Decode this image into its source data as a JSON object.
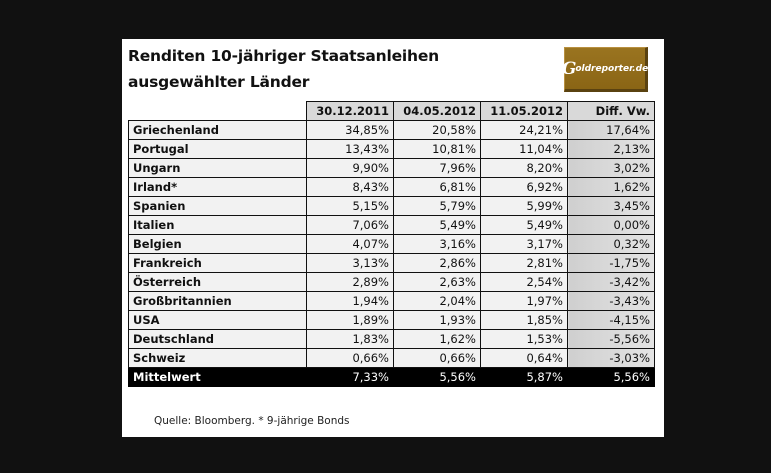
{
  "title_line1": "Renditen 10-jähriger Staatsanleihen",
  "title_line2": "ausgewählter Länder",
  "logo": {
    "glyph": "G",
    "text": "oldreporter.de",
    "color": "#8f6a1a"
  },
  "columns": [
    "30.12.2011",
    "04.05.2012",
    "11.05.2012",
    "Diff. Vw."
  ],
  "rows": [
    {
      "country": "Griechenland",
      "v1": "34,85%",
      "v2": "20,58%",
      "v3": "24,21%",
      "diff": "17,64%"
    },
    {
      "country": "Portugal",
      "v1": "13,43%",
      "v2": "10,81%",
      "v3": "11,04%",
      "diff": "2,13%"
    },
    {
      "country": "Ungarn",
      "v1": "9,90%",
      "v2": "7,96%",
      "v3": "8,20%",
      "diff": "3,02%"
    },
    {
      "country": "Irland*",
      "v1": "8,43%",
      "v2": "6,81%",
      "v3": "6,92%",
      "diff": "1,62%"
    },
    {
      "country": "Spanien",
      "v1": "5,15%",
      "v2": "5,79%",
      "v3": "5,99%",
      "diff": "3,45%"
    },
    {
      "country": "Italien",
      "v1": "7,06%",
      "v2": "5,49%",
      "v3": "5,49%",
      "diff": "0,00%"
    },
    {
      "country": "Belgien",
      "v1": "4,07%",
      "v2": "3,16%",
      "v3": "3,17%",
      "diff": "0,32%"
    },
    {
      "country": "Frankreich",
      "v1": "3,13%",
      "v2": "2,86%",
      "v3": "2,81%",
      "diff": "-1,75%"
    },
    {
      "country": "Österreich",
      "v1": "2,89%",
      "v2": "2,63%",
      "v3": "2,54%",
      "diff": "-3,42%"
    },
    {
      "country": "Großbritannien",
      "v1": "1,94%",
      "v2": "2,04%",
      "v3": "1,97%",
      "diff": "-3,43%"
    },
    {
      "country": "USA",
      "v1": "1,89%",
      "v2": "1,93%",
      "v3": "1,85%",
      "diff": "-4,15%"
    },
    {
      "country": "Deutschland",
      "v1": "1,83%",
      "v2": "1,62%",
      "v3": "1,53%",
      "diff": "-5,56%"
    },
    {
      "country": "Schweiz",
      "v1": "0,66%",
      "v2": "0,66%",
      "v3": "0,64%",
      "diff": "-3,03%"
    }
  ],
  "average": {
    "label": "Mittelwert",
    "v1": "7,33%",
    "v2": "5,56%",
    "v3": "5,87%",
    "diff": "5,56%"
  },
  "source": "Quelle: Bloomberg. * 9-jährige Bonds"
}
